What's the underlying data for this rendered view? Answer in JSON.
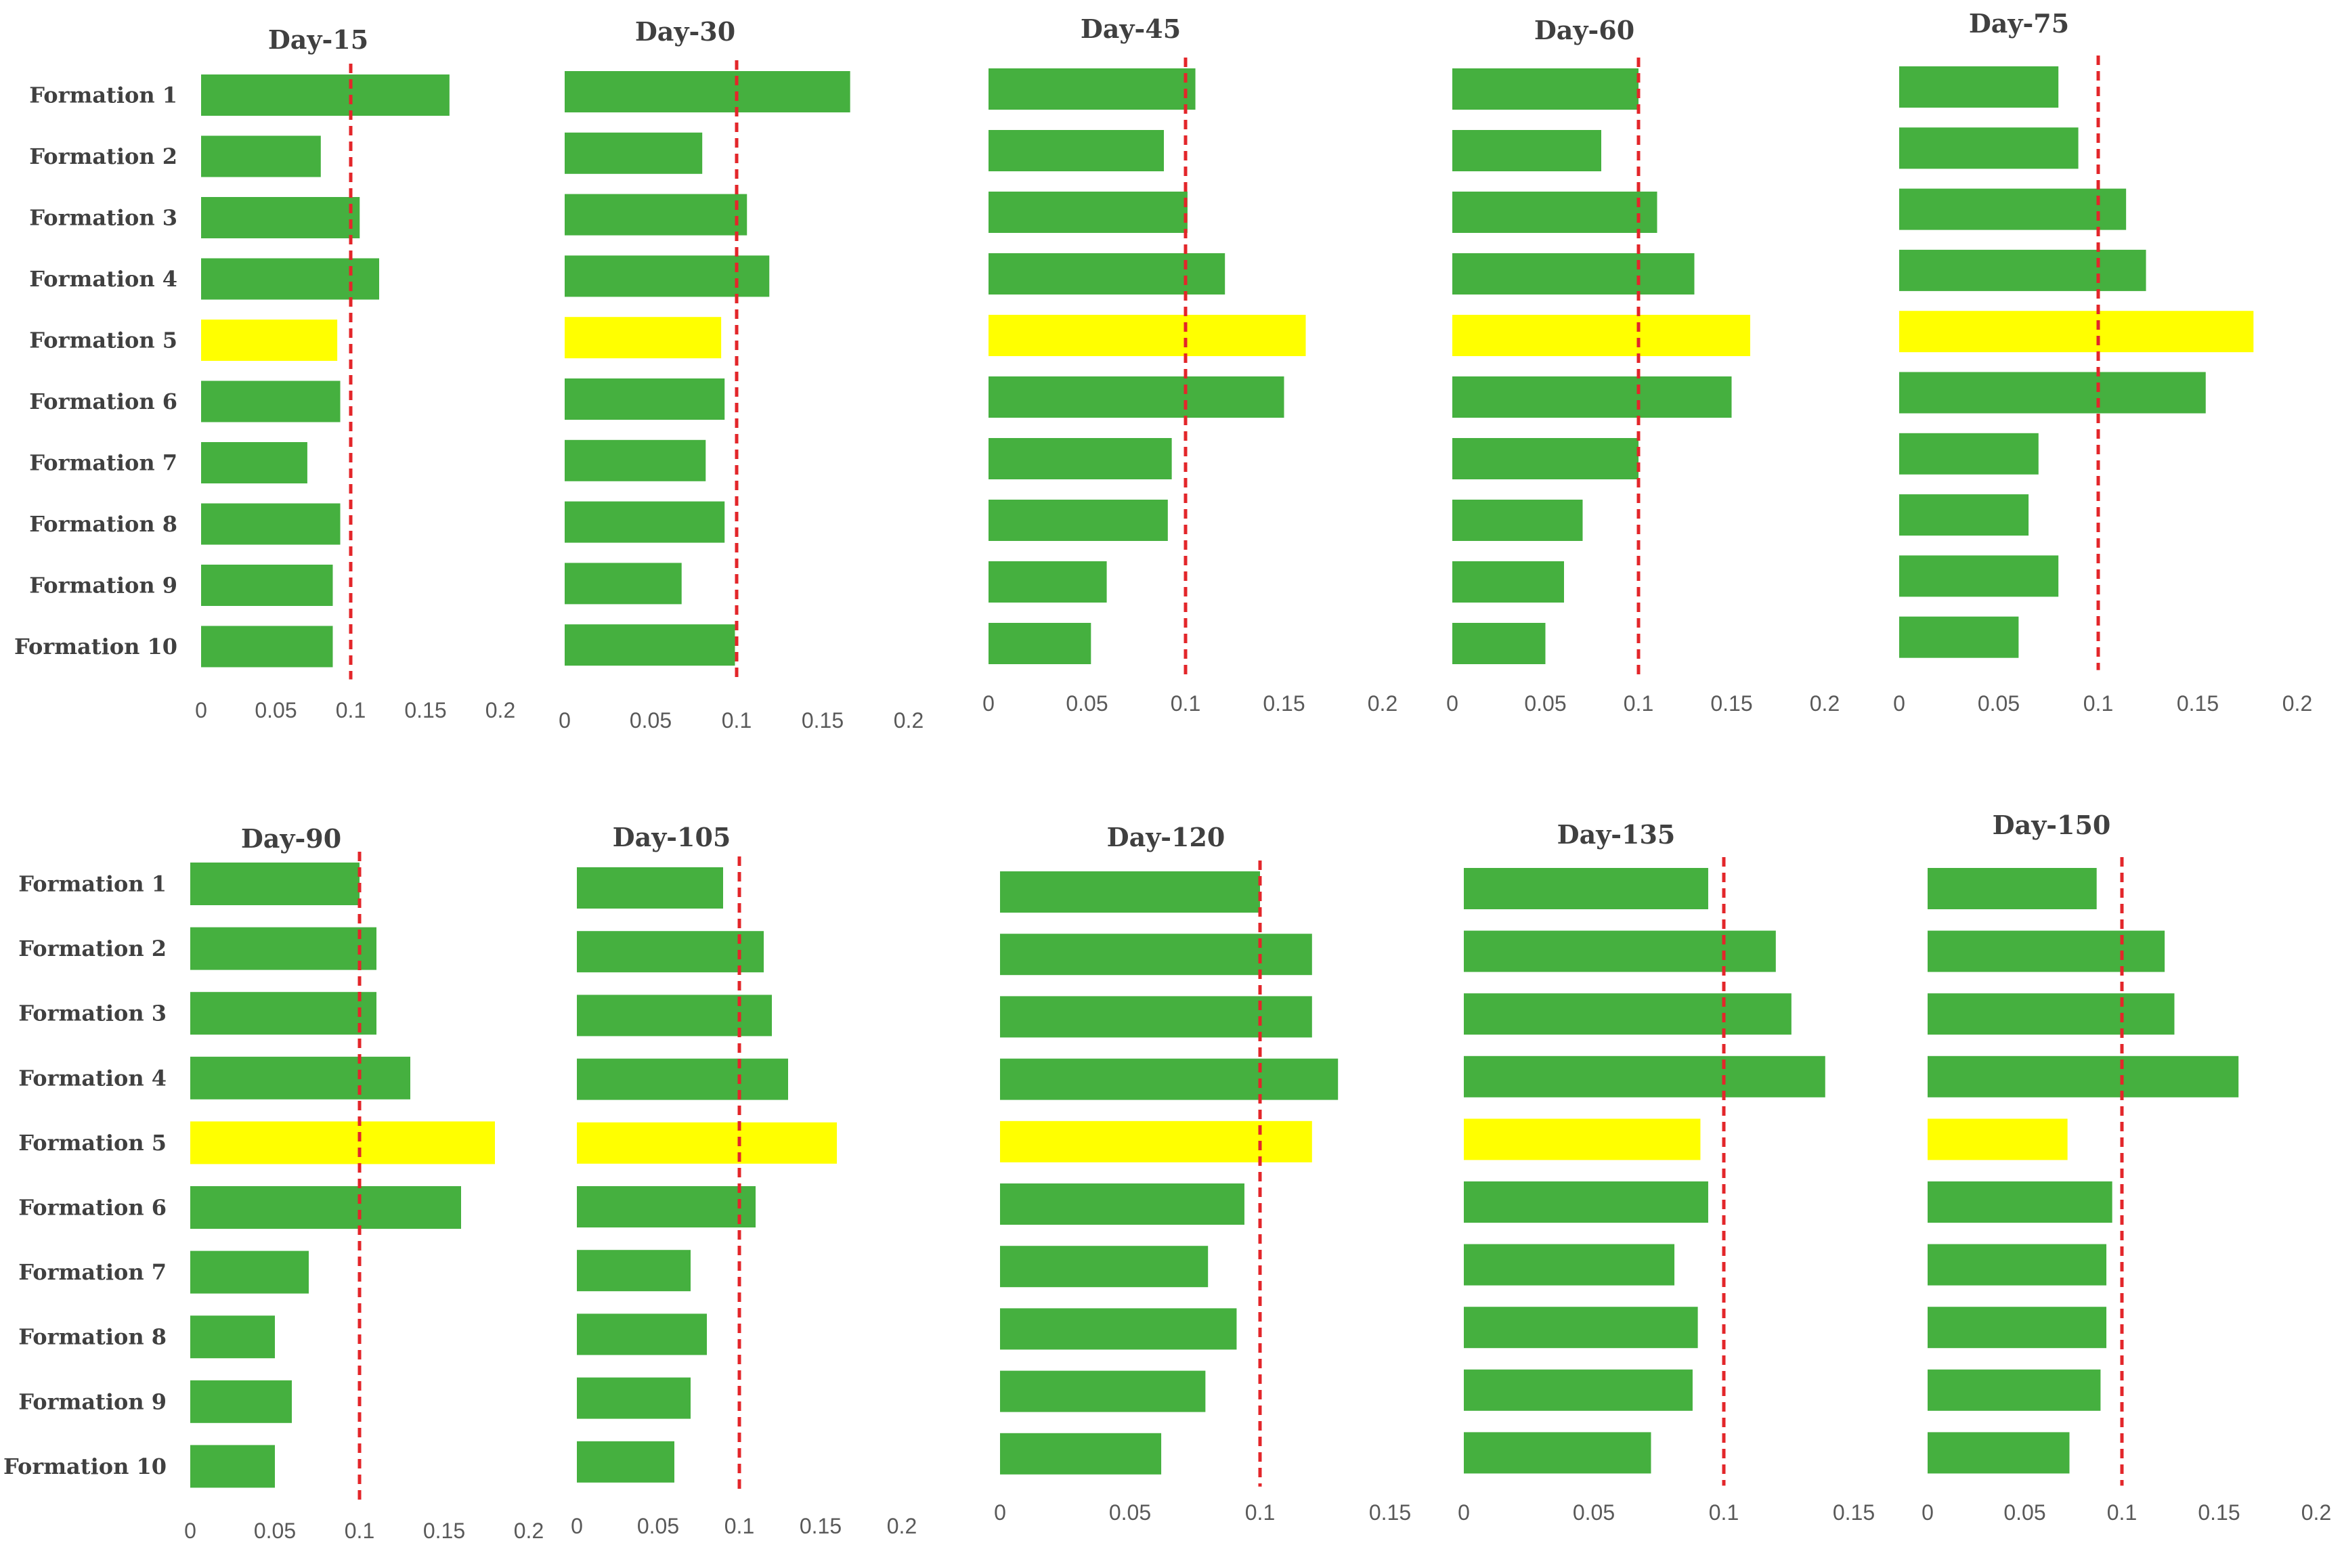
{
  "colors": {
    "bar": "#45b03f",
    "highlight": "#ffff00",
    "threshold": "#e3262a",
    "text": "#404040",
    "tick": "#595959"
  },
  "highlight_category": "Formation 5",
  "chart_data": [
    {
      "type": "bar",
      "orientation": "horizontal",
      "title": "Day-15",
      "categories": [
        "Formation 1",
        "Formation 2",
        "Formation 3",
        "Formation 4",
        "Formation 5",
        "Formation 6",
        "Formation 7",
        "Formation 8",
        "Formation 9",
        "Formation 10"
      ],
      "values": [
        0.166,
        0.08,
        0.106,
        0.119,
        0.091,
        0.093,
        0.071,
        0.093,
        0.088,
        0.088
      ],
      "threshold": 0.1,
      "xlim": [
        0,
        0.2
      ],
      "xticks": [
        "0",
        "0.05",
        "0.1",
        "0.15",
        "0.2"
      ],
      "show_categories": true
    },
    {
      "type": "bar",
      "orientation": "horizontal",
      "title": "Day-30",
      "categories": [
        "Formation 1",
        "Formation 2",
        "Formation 3",
        "Formation 4",
        "Formation 5",
        "Formation 6",
        "Formation 7",
        "Formation 8",
        "Formation 9",
        "Formation 10"
      ],
      "values": [
        0.166,
        0.08,
        0.106,
        0.119,
        0.091,
        0.093,
        0.082,
        0.093,
        0.068,
        0.099
      ],
      "threshold": 0.1,
      "xlim": [
        0,
        0.2
      ],
      "xticks": [
        "0",
        "0.05",
        "0.1",
        "0.15",
        "0.2"
      ],
      "show_categories": false
    },
    {
      "type": "bar",
      "orientation": "horizontal",
      "title": "Day-45",
      "categories": [
        "Formation 1",
        "Formation 2",
        "Formation 3",
        "Formation 4",
        "Formation 5",
        "Formation 6",
        "Formation 7",
        "Formation 8",
        "Formation 9",
        "Formation 10"
      ],
      "values": [
        0.105,
        0.089,
        0.101,
        0.12,
        0.161,
        0.15,
        0.093,
        0.091,
        0.06,
        0.052
      ],
      "threshold": 0.1,
      "xlim": [
        0,
        0.2
      ],
      "xticks": [
        "0",
        "0.05",
        "0.1",
        "0.15",
        "0.2"
      ],
      "show_categories": false
    },
    {
      "type": "bar",
      "orientation": "horizontal",
      "title": "Day-60",
      "categories": [
        "Formation 1",
        "Formation 2",
        "Formation 3",
        "Formation 4",
        "Formation 5",
        "Formation 6",
        "Formation 7",
        "Formation 8",
        "Formation 9",
        "Formation 10"
      ],
      "values": [
        0.1,
        0.08,
        0.11,
        0.13,
        0.16,
        0.15,
        0.1,
        0.07,
        0.06,
        0.05
      ],
      "threshold": 0.1,
      "xlim": [
        0,
        0.2
      ],
      "xticks": [
        "0",
        "0.05",
        "0.1",
        "0.15",
        "0.2"
      ],
      "show_categories": false
    },
    {
      "type": "bar",
      "orientation": "horizontal",
      "title": "Day-75",
      "categories": [
        "Formation 1",
        "Formation 2",
        "Formation 3",
        "Formation 4",
        "Formation 5",
        "Formation 6",
        "Formation 7",
        "Formation 8",
        "Formation 9",
        "Formation 10"
      ],
      "values": [
        0.08,
        0.09,
        0.114,
        0.124,
        0.178,
        0.154,
        0.07,
        0.065,
        0.08,
        0.06
      ],
      "threshold": 0.1,
      "xlim": [
        0,
        0.2
      ],
      "xticks": [
        "0",
        "0.05",
        "0.1",
        "0.15",
        "0.2"
      ],
      "show_categories": false
    },
    {
      "type": "bar",
      "orientation": "horizontal",
      "title": "Day-90",
      "categories": [
        "Formation 1",
        "Formation 2",
        "Formation 3",
        "Formation 4",
        "Formation 5",
        "Formation 6",
        "Formation 7",
        "Formation 8",
        "Formation 9",
        "Formation 10"
      ],
      "values": [
        0.1,
        0.11,
        0.11,
        0.13,
        0.18,
        0.16,
        0.07,
        0.05,
        0.06,
        0.05
      ],
      "threshold": 0.1,
      "xlim": [
        0,
        0.2
      ],
      "xticks": [
        "0",
        "0.05",
        "0.1",
        "0.15",
        "0.2"
      ],
      "show_categories": true
    },
    {
      "type": "bar",
      "orientation": "horizontal",
      "title": "Day-105",
      "categories": [
        "Formation 1",
        "Formation 2",
        "Formation 3",
        "Formation 4",
        "Formation 5",
        "Formation 6",
        "Formation 7",
        "Formation 8",
        "Formation 9",
        "Formation 10"
      ],
      "values": [
        0.09,
        0.115,
        0.12,
        0.13,
        0.16,
        0.11,
        0.07,
        0.08,
        0.07,
        0.06
      ],
      "threshold": 0.1,
      "xlim": [
        0,
        0.2
      ],
      "xticks": [
        "0",
        "0.05",
        "0.1",
        "0.15",
        "0.2"
      ],
      "show_categories": false
    },
    {
      "type": "bar",
      "orientation": "horizontal",
      "title": "Day-120",
      "categories": [
        "Formation 1",
        "Formation 2",
        "Formation 3",
        "Formation 4",
        "Formation 5",
        "Formation 6",
        "Formation 7",
        "Formation 8",
        "Formation 9",
        "Formation 10"
      ],
      "values": [
        0.1,
        0.12,
        0.12,
        0.13,
        0.12,
        0.094,
        0.08,
        0.091,
        0.079,
        0.062
      ],
      "threshold": 0.1,
      "xlim": [
        0,
        0.15
      ],
      "xticks": [
        "0",
        "0.05",
        "0.1",
        "0.15"
      ],
      "show_categories": false
    },
    {
      "type": "bar",
      "orientation": "horizontal",
      "title": "Day-135",
      "categories": [
        "Formation 1",
        "Formation 2",
        "Formation 3",
        "Formation 4",
        "Formation 5",
        "Formation 6",
        "Formation 7",
        "Formation 8",
        "Formation 9",
        "Formation 10"
      ],
      "values": [
        0.094,
        0.12,
        0.126,
        0.139,
        0.091,
        0.094,
        0.081,
        0.09,
        0.088,
        0.072
      ],
      "threshold": 0.1,
      "xlim": [
        0,
        0.15
      ],
      "xticks": [
        "0",
        "0.05",
        "0.1",
        "0.15"
      ],
      "show_categories": false
    },
    {
      "type": "bar",
      "orientation": "horizontal",
      "title": "Day-150",
      "categories": [
        "Formation 1",
        "Formation 2",
        "Formation 3",
        "Formation 4",
        "Formation 5",
        "Formation 6",
        "Formation 7",
        "Formation 8",
        "Formation 9",
        "Formation 10"
      ],
      "values": [
        0.087,
        0.122,
        0.127,
        0.16,
        0.072,
        0.095,
        0.092,
        0.092,
        0.089,
        0.073
      ],
      "threshold": 0.1,
      "xlim": [
        0,
        0.2
      ],
      "xticks": [
        "0",
        "0.05",
        "0.1",
        "0.15",
        "0.2"
      ],
      "show_categories": false
    }
  ]
}
